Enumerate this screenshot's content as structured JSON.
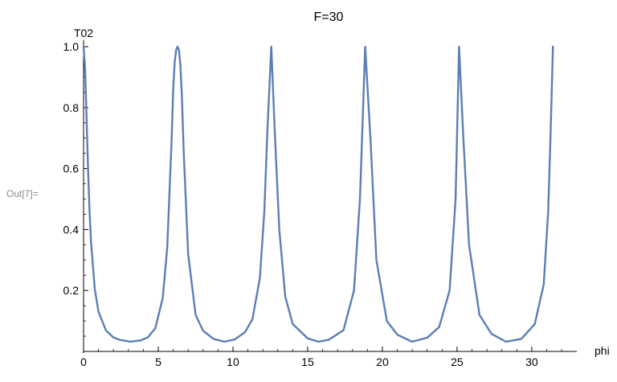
{
  "cell": {
    "out_label": "Out[7]="
  },
  "chart_data": {
    "type": "line",
    "title": "F=30",
    "xlabel": "phi",
    "ylabel": "T02",
    "xlim": [
      0,
      32.8
    ],
    "ylim": [
      0.0,
      1.0
    ],
    "x_ticks": [
      0,
      5,
      10,
      15,
      20,
      25,
      30
    ],
    "x_tick_labels": [
      "0",
      "5",
      "10",
      "15",
      "20",
      "25",
      "30"
    ],
    "y_ticks": [
      0.2,
      0.4,
      0.6,
      0.8,
      1.0
    ],
    "y_tick_labels": [
      "0.2",
      "0.4",
      "0.6",
      "0.8",
      "1.0"
    ],
    "grid": false,
    "series": [
      {
        "function": "1/(1+F*sin(phi/2)^2)",
        "F": 30,
        "domain": [
          0,
          31.42
        ],
        "x": [
          0,
          0.1,
          0.2,
          0.3,
          0.4,
          0.5,
          0.75,
          1.0,
          1.5,
          2.0,
          2.5,
          3.1416,
          3.8,
          4.3,
          4.8,
          5.3,
          5.6,
          5.9,
          6.0,
          6.1,
          6.2,
          6.2832,
          6.38,
          6.48,
          6.58,
          6.7,
          7.0,
          7.5,
          8.0,
          8.7,
          9.4248,
          10.1,
          10.8,
          11.3,
          11.8,
          12.1,
          12.3,
          12.5664,
          12.8,
          13.1,
          13.5,
          14.0,
          15.0,
          15.708,
          16.4,
          17.4,
          18.1,
          18.5,
          18.85,
          19.2,
          19.6,
          20.3,
          21.0,
          21.99,
          23.0,
          23.8,
          24.5,
          24.9,
          25.1327,
          25.4,
          25.8,
          26.5,
          27.3,
          28.27,
          29.3,
          30.2,
          30.8,
          31.1,
          31.25,
          31.4159
        ],
        "y": [
          1.0,
          0.93,
          0.77,
          0.6,
          0.46,
          0.36,
          0.205,
          0.13,
          0.069,
          0.046,
          0.037,
          0.032,
          0.036,
          0.046,
          0.076,
          0.175,
          0.34,
          0.7,
          0.86,
          0.95,
          0.99,
          1.0,
          0.99,
          0.94,
          0.84,
          0.66,
          0.32,
          0.12,
          0.068,
          0.041,
          0.032,
          0.039,
          0.063,
          0.105,
          0.24,
          0.46,
          0.72,
          1.0,
          0.72,
          0.4,
          0.18,
          0.09,
          0.043,
          0.032,
          0.038,
          0.07,
          0.2,
          0.5,
          1.0,
          0.7,
          0.3,
          0.1,
          0.055,
          0.032,
          0.045,
          0.08,
          0.2,
          0.5,
          1.0,
          0.72,
          0.35,
          0.12,
          0.058,
          0.032,
          0.041,
          0.09,
          0.22,
          0.46,
          0.7,
          1.0
        ],
        "color": "#5a7fb5"
      }
    ]
  }
}
